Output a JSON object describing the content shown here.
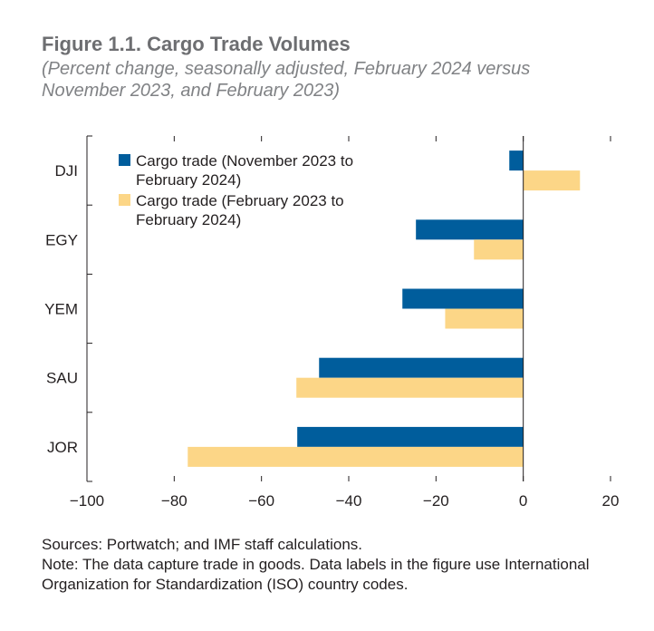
{
  "chart_data": {
    "type": "bar",
    "orientation": "horizontal",
    "title": "Figure 1.1. Cargo Trade Volumes",
    "subtitle": "(Percent change, seasonally adjusted, February 2024 versus November 2023, and February 2023)",
    "categories": [
      "DJI",
      "EGY",
      "YEM",
      "SAU",
      "JOR"
    ],
    "series": [
      {
        "name": "Cargo trade (November 2023 to February 2024)",
        "legend_lines": [
          "Cargo trade (November 2023 to",
          "February 2024)"
        ],
        "color": "#005d9c",
        "values": [
          -3.2,
          -24.6,
          -27.7,
          -46.8,
          -51.8
        ]
      },
      {
        "name": "Cargo trade (February 2023 to February 2024)",
        "legend_lines": [
          "Cargo trade (February 2023 to",
          "February 2024)"
        ],
        "color": "#fcd687",
        "values": [
          13.0,
          -11.3,
          -17.9,
          -52.0,
          -76.9
        ]
      }
    ],
    "xlim": [
      -100,
      20
    ],
    "xticks": [
      -100,
      -80,
      -60,
      -40,
      -20,
      0,
      20
    ],
    "xtick_labels": [
      "−100",
      "−80",
      "−60",
      "−40",
      "−20",
      "0",
      "20"
    ],
    "xlabel": "",
    "ylabel": "",
    "grid": false,
    "legend_position": "top-left"
  },
  "notes": {
    "sources": "Sources: Portwatch; and IMF staff calculations.",
    "note": "Note: The data capture trade in goods. Data labels in the figure use International Organization for Standardization (ISO) country codes."
  }
}
